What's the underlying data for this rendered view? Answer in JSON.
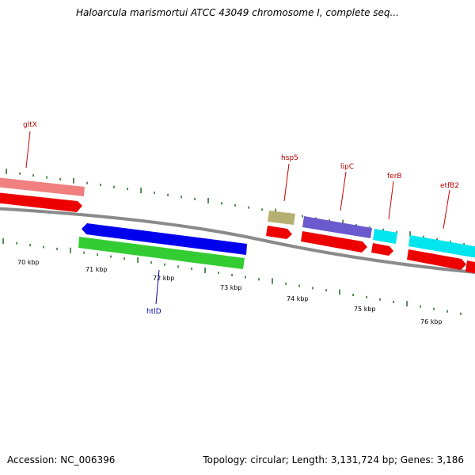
{
  "title": "Haloarcula marismortui ATCC 43049 chromosome I, complete seq...",
  "footer": {
    "accession": "Accession: NC_006396",
    "summary": "Topology: circular; Length: 3,131,724 bp; Genes: 3,186"
  },
  "scale": {
    "unit": "kbp",
    "labels": [
      "70 kbp",
      "71 kbp",
      "72 kbp",
      "73 kbp",
      "74 kbp",
      "75 kbp",
      "76 kbp"
    ]
  },
  "colors": {
    "backbone": "#8a8a8a",
    "tick_forward": "#1f6b1f",
    "tick_reverse": "#1f6b1f",
    "label_forward": "#c00000",
    "label_reverse": "#0000aa"
  },
  "genes": [
    {
      "label": "gltX",
      "strand": "+",
      "labeled": true
    },
    {
      "label": "htlD",
      "strand": "-",
      "labeled": true
    },
    {
      "label": "hsp5",
      "strand": "+",
      "labeled": true
    },
    {
      "label": "lipC",
      "strand": "+",
      "labeled": true
    },
    {
      "label": "ferB",
      "strand": "+",
      "labeled": true
    },
    {
      "label": "etfB2",
      "strand": "+",
      "labeled": true
    }
  ]
}
